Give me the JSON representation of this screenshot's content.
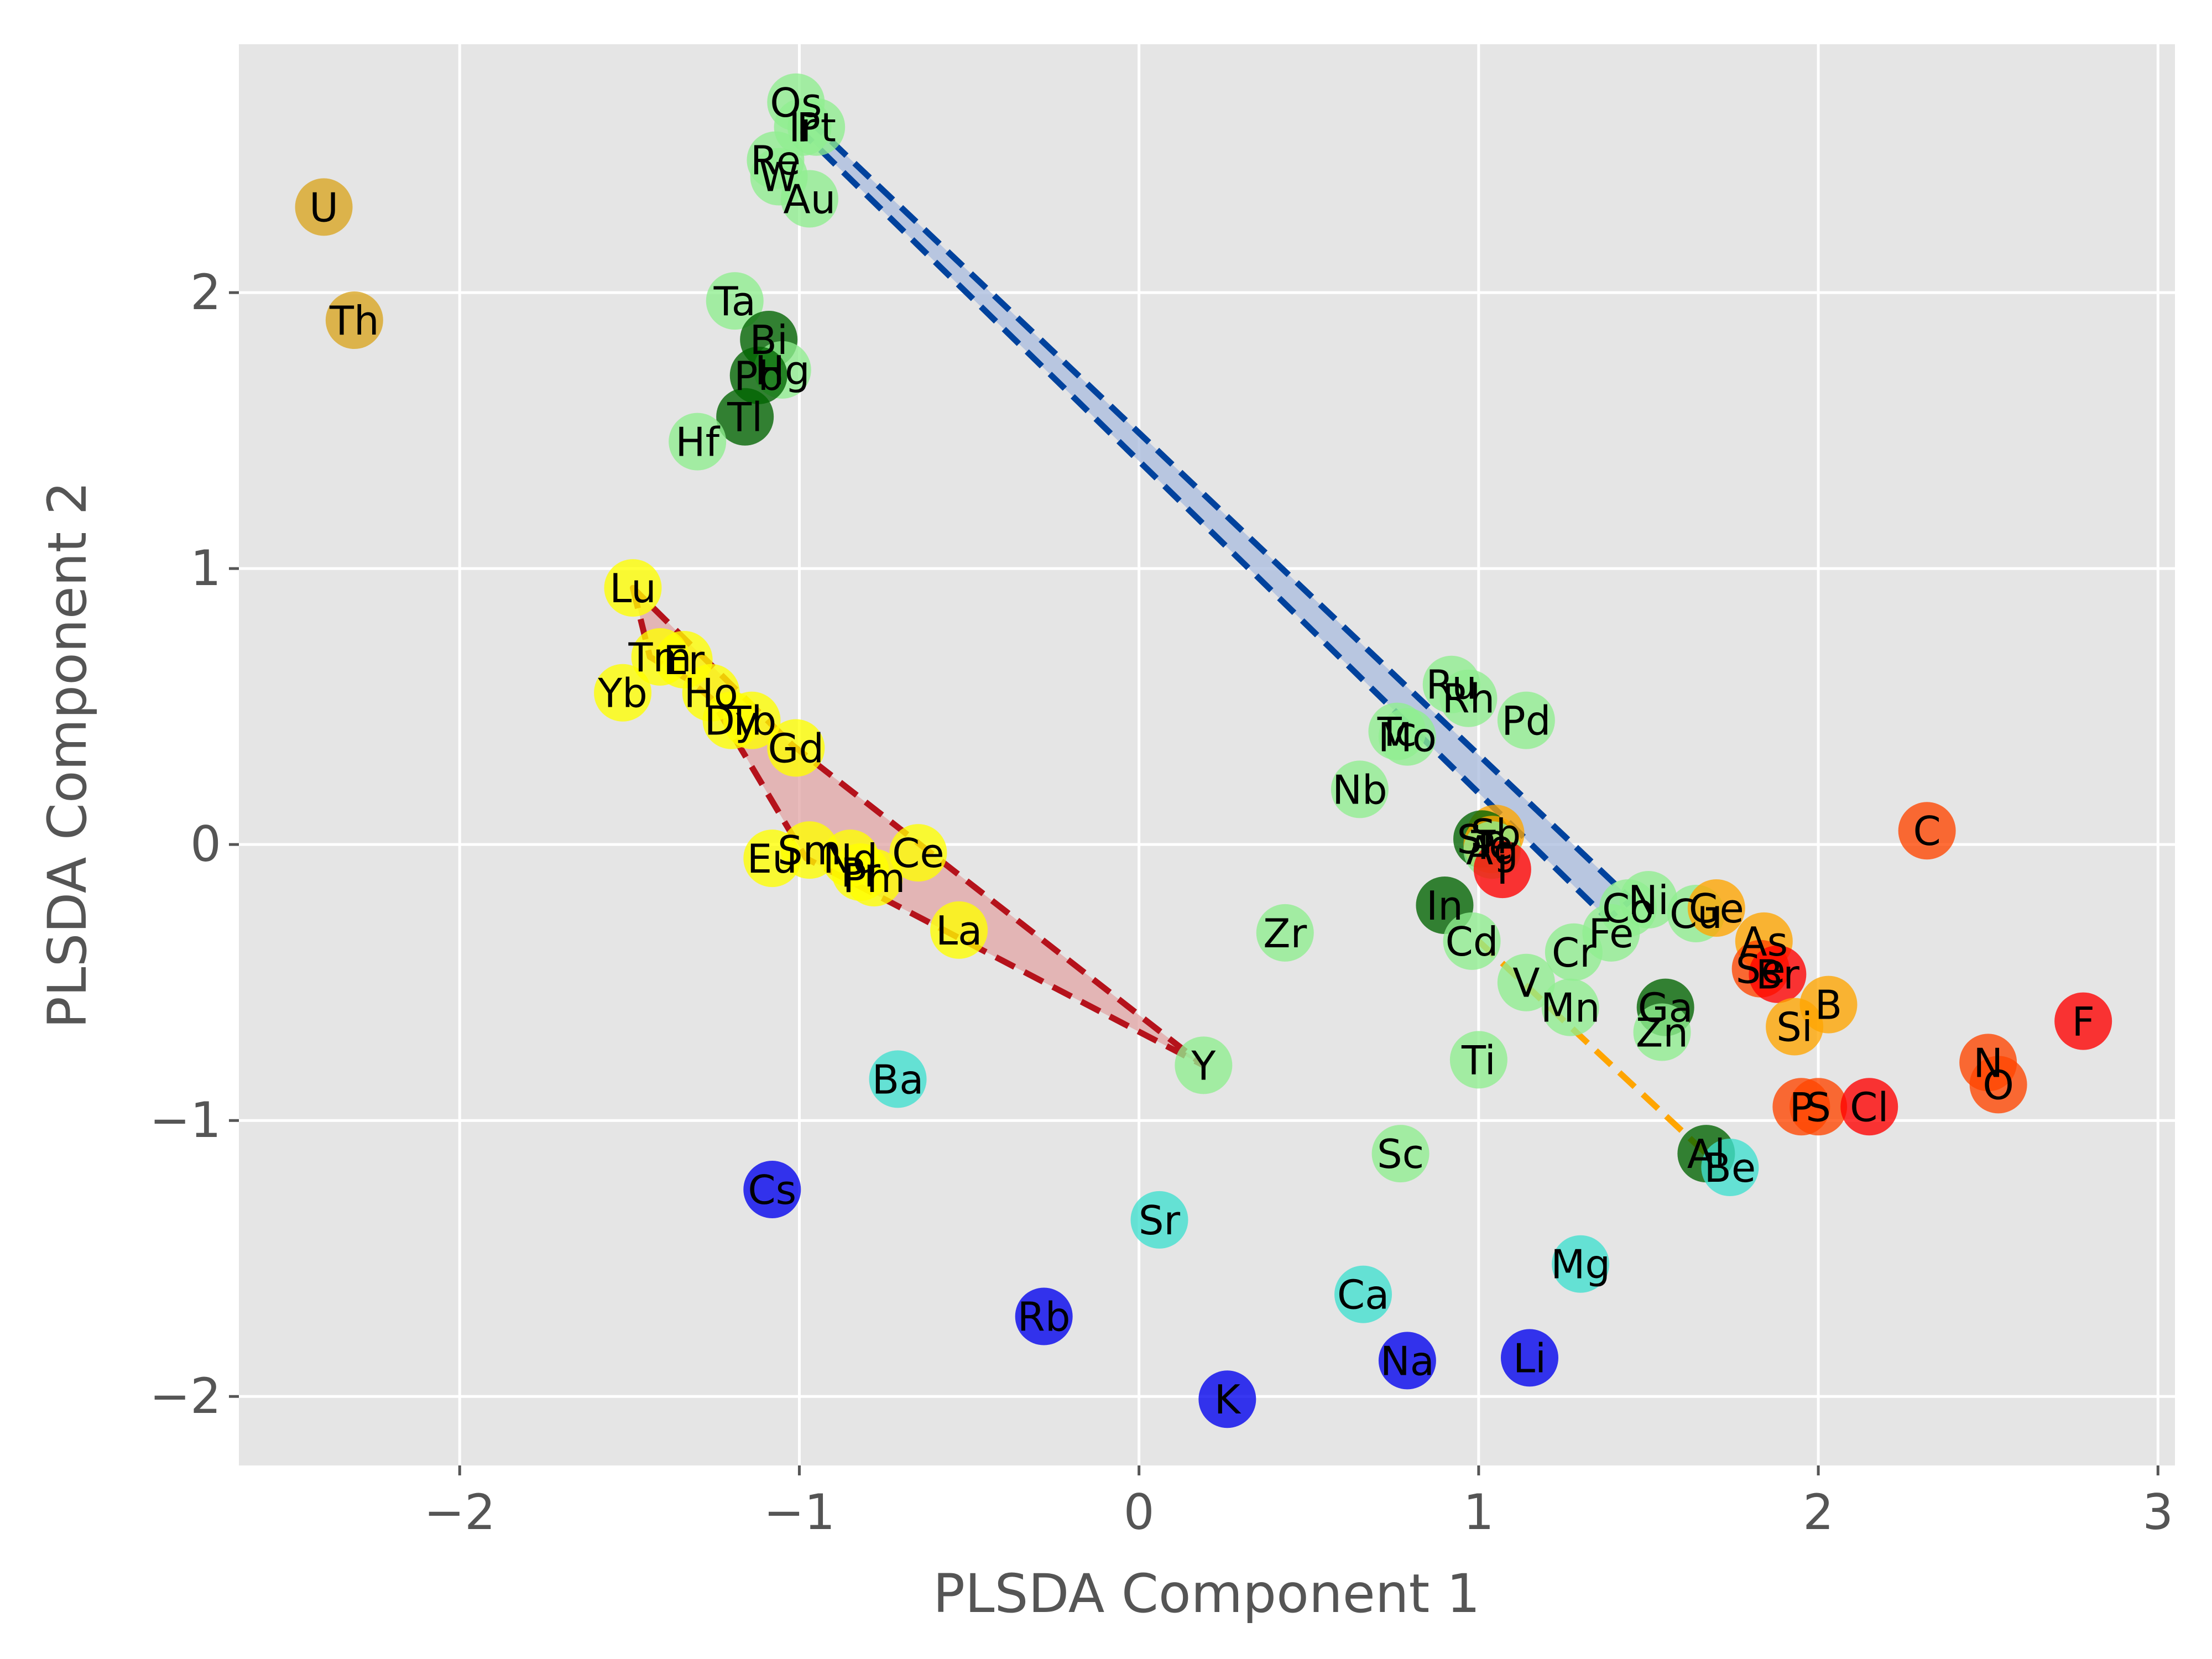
{
  "chart_data": {
    "type": "scatter",
    "title": "",
    "xlabel": "PLSDA Component 1",
    "ylabel": "PLSDA Component 2",
    "xlim": [
      -2.65,
      3.05
    ],
    "ylim": [
      -2.25,
      2.9
    ],
    "xticks": [
      -2,
      -1,
      0,
      1,
      2,
      3
    ],
    "yticks": [
      -2,
      -1,
      0,
      1,
      2
    ],
    "xtick_labels": [
      "−2",
      "−1",
      "0",
      "1",
      "2",
      "3"
    ],
    "ytick_labels": [
      "−2",
      "−1",
      "0",
      "1",
      "2"
    ],
    "grid": true,
    "style": "ggplot",
    "colors": {
      "alkali": "#0000ee",
      "alkaline_earth": "#40e0d0",
      "transition": "#90ee90",
      "post_transition": "#006400",
      "lanthanide": "#ffff00",
      "actinide": "#daa520",
      "metalloid": "#ffa500",
      "nonmetal": "#ff4500",
      "halogen": "#ff0000"
    },
    "hulls": [
      {
        "color": "#00429d",
        "fill": "#a8bbdd",
        "points": [
          [
            -0.98,
            2.62
          ],
          [
            -0.95,
            2.6
          ],
          [
            1.45,
            -0.2
          ],
          [
            1.38,
            -0.27
          ],
          [
            -0.99,
            2.58
          ]
        ]
      },
      {
        "color": "#b5121b",
        "fill": "#e2a4a4",
        "points": [
          [
            -1.49,
            0.93
          ],
          [
            -1.44,
            0.68
          ],
          [
            -1.33,
            0.6
          ],
          [
            -1.26,
            0.53
          ],
          [
            -0.98,
            -0.05
          ],
          [
            0.19,
            -0.8
          ],
          [
            -1.02,
            0.36
          ]
        ]
      }
    ],
    "lines": [
      {
        "color": "#ffa500",
        "points": [
          [
            1.0,
            -0.35
          ],
          [
            1.67,
            -1.12
          ]
        ]
      }
    ],
    "points": [
      {
        "label": "U",
        "x": -2.4,
        "y": 2.31,
        "group": "actinide"
      },
      {
        "label": "Th",
        "x": -2.31,
        "y": 1.9,
        "group": "actinide"
      },
      {
        "label": "Os",
        "x": -1.01,
        "y": 2.69,
        "group": "transition"
      },
      {
        "label": "Ir",
        "x": -0.99,
        "y": 2.6,
        "group": "transition"
      },
      {
        "label": "Pt",
        "x": -0.95,
        "y": 2.6,
        "group": "transition"
      },
      {
        "label": "Re",
        "x": -1.07,
        "y": 2.48,
        "group": "transition"
      },
      {
        "label": "W",
        "x": -1.06,
        "y": 2.42,
        "group": "transition"
      },
      {
        "label": "Au",
        "x": -0.97,
        "y": 2.34,
        "group": "transition"
      },
      {
        "label": "Ta",
        "x": -1.19,
        "y": 1.97,
        "group": "transition"
      },
      {
        "label": "Bi",
        "x": -1.09,
        "y": 1.83,
        "group": "post_transition"
      },
      {
        "label": "Hg",
        "x": -1.05,
        "y": 1.72,
        "group": "transition"
      },
      {
        "label": "Pb",
        "x": -1.12,
        "y": 1.7,
        "group": "post_transition"
      },
      {
        "label": "Tl",
        "x": -1.16,
        "y": 1.55,
        "group": "post_transition"
      },
      {
        "label": "Hf",
        "x": -1.3,
        "y": 1.46,
        "group": "transition"
      },
      {
        "label": "Lu",
        "x": -1.49,
        "y": 0.93,
        "group": "lanthanide"
      },
      {
        "label": "Tm",
        "x": -1.41,
        "y": 0.68,
        "group": "lanthanide"
      },
      {
        "label": "Er",
        "x": -1.34,
        "y": 0.67,
        "group": "lanthanide"
      },
      {
        "label": "Yb",
        "x": -1.52,
        "y": 0.55,
        "group": "lanthanide"
      },
      {
        "label": "Ho",
        "x": -1.26,
        "y": 0.55,
        "group": "lanthanide"
      },
      {
        "label": "Dy",
        "x": -1.2,
        "y": 0.45,
        "group": "lanthanide"
      },
      {
        "label": "Tb",
        "x": -1.14,
        "y": 0.45,
        "group": "lanthanide"
      },
      {
        "label": "Gd",
        "x": -1.01,
        "y": 0.35,
        "group": "lanthanide"
      },
      {
        "label": "Eu",
        "x": -1.08,
        "y": -0.05,
        "group": "lanthanide"
      },
      {
        "label": "Sm",
        "x": -0.97,
        "y": -0.02,
        "group": "lanthanide"
      },
      {
        "label": "Nd",
        "x": -0.85,
        "y": -0.05,
        "group": "lanthanide"
      },
      {
        "label": "Pr",
        "x": -0.82,
        "y": -0.1,
        "group": "lanthanide"
      },
      {
        "label": "Pm",
        "x": -0.78,
        "y": -0.12,
        "group": "lanthanide"
      },
      {
        "label": "Ce",
        "x": -0.65,
        "y": -0.03,
        "group": "lanthanide"
      },
      {
        "label": "La",
        "x": -0.53,
        "y": -0.31,
        "group": "lanthanide"
      },
      {
        "label": "Y",
        "x": 0.19,
        "y": -0.8,
        "group": "transition"
      },
      {
        "label": "Zr",
        "x": 0.43,
        "y": -0.32,
        "group": "transition"
      },
      {
        "label": "Ba",
        "x": -0.71,
        "y": -0.85,
        "group": "alkaline_earth"
      },
      {
        "label": "Cs",
        "x": -1.08,
        "y": -1.25,
        "group": "alkali"
      },
      {
        "label": "Sr",
        "x": 0.06,
        "y": -1.36,
        "group": "alkaline_earth"
      },
      {
        "label": "Rb",
        "x": -0.28,
        "y": -1.71,
        "group": "alkali"
      },
      {
        "label": "K",
        "x": 0.26,
        "y": -2.01,
        "group": "alkali"
      },
      {
        "label": "Ca",
        "x": 0.66,
        "y": -1.63,
        "group": "alkaline_earth"
      },
      {
        "label": "Na",
        "x": 0.79,
        "y": -1.87,
        "group": "alkali"
      },
      {
        "label": "Li",
        "x": 1.15,
        "y": -1.86,
        "group": "alkali"
      },
      {
        "label": "Mg",
        "x": 1.3,
        "y": -1.52,
        "group": "alkaline_earth"
      },
      {
        "label": "Sc",
        "x": 0.77,
        "y": -1.12,
        "group": "transition"
      },
      {
        "label": "Ti",
        "x": 1.0,
        "y": -0.78,
        "group": "transition"
      },
      {
        "label": "Nb",
        "x": 0.65,
        "y": 0.2,
        "group": "transition"
      },
      {
        "label": "Tc",
        "x": 0.76,
        "y": 0.41,
        "group": "transition"
      },
      {
        "label": "Mo",
        "x": 0.79,
        "y": 0.39,
        "group": "transition"
      },
      {
        "label": "Ru",
        "x": 0.92,
        "y": 0.58,
        "group": "transition"
      },
      {
        "label": "Rh",
        "x": 0.97,
        "y": 0.53,
        "group": "transition"
      },
      {
        "label": "Pd",
        "x": 1.14,
        "y": 0.45,
        "group": "transition"
      },
      {
        "label": "Sb",
        "x": 1.05,
        "y": 0.04,
        "group": "metalloid"
      },
      {
        "label": "Sn",
        "x": 1.01,
        "y": 0.02,
        "group": "post_transition"
      },
      {
        "label": "Te",
        "x": 1.04,
        "y": 0.0,
        "group": "metalloid"
      },
      {
        "label": "Ag",
        "x": 1.04,
        "y": -0.02,
        "group": "transition"
      },
      {
        "label": "I",
        "x": 1.07,
        "y": -0.09,
        "group": "halogen"
      },
      {
        "label": "In",
        "x": 0.9,
        "y": -0.22,
        "group": "post_transition"
      },
      {
        "label": "Cd",
        "x": 0.98,
        "y": -0.35,
        "group": "transition"
      },
      {
        "label": "Co",
        "x": 1.44,
        "y": -0.23,
        "group": "transition"
      },
      {
        "label": "Ni",
        "x": 1.5,
        "y": -0.2,
        "group": "transition"
      },
      {
        "label": "Fe",
        "x": 1.39,
        "y": -0.32,
        "group": "transition"
      },
      {
        "label": "Cu",
        "x": 1.64,
        "y": -0.25,
        "group": "transition"
      },
      {
        "label": "Ge",
        "x": 1.7,
        "y": -0.23,
        "group": "metalloid"
      },
      {
        "label": "Cr",
        "x": 1.28,
        "y": -0.39,
        "group": "transition"
      },
      {
        "label": "V",
        "x": 1.14,
        "y": -0.5,
        "group": "transition"
      },
      {
        "label": "Mn",
        "x": 1.27,
        "y": -0.59,
        "group": "transition"
      },
      {
        "label": "Ga",
        "x": 1.55,
        "y": -0.59,
        "group": "post_transition"
      },
      {
        "label": "Zn",
        "x": 1.54,
        "y": -0.68,
        "group": "transition"
      },
      {
        "label": "As",
        "x": 1.84,
        "y": -0.35,
        "group": "metalloid"
      },
      {
        "label": "Se",
        "x": 1.83,
        "y": -0.45,
        "group": "nonmetal"
      },
      {
        "label": "Br",
        "x": 1.88,
        "y": -0.47,
        "group": "halogen"
      },
      {
        "label": "B",
        "x": 2.03,
        "y": -0.58,
        "group": "metalloid"
      },
      {
        "label": "Si",
        "x": 1.93,
        "y": -0.66,
        "group": "metalloid"
      },
      {
        "label": "P",
        "x": 1.95,
        "y": -0.95,
        "group": "nonmetal"
      },
      {
        "label": "S",
        "x": 2.0,
        "y": -0.95,
        "group": "nonmetal"
      },
      {
        "label": "Cl",
        "x": 2.15,
        "y": -0.95,
        "group": "halogen"
      },
      {
        "label": "Al",
        "x": 1.67,
        "y": -1.12,
        "group": "post_transition"
      },
      {
        "label": "Be",
        "x": 1.74,
        "y": -1.17,
        "group": "alkaline_earth"
      },
      {
        "label": "C",
        "x": 2.32,
        "y": 0.05,
        "group": "nonmetal"
      },
      {
        "label": "N",
        "x": 2.5,
        "y": -0.79,
        "group": "nonmetal"
      },
      {
        "label": "O",
        "x": 2.53,
        "y": -0.87,
        "group": "nonmetal"
      },
      {
        "label": "F",
        "x": 2.78,
        "y": -0.64,
        "group": "halogen"
      }
    ]
  }
}
